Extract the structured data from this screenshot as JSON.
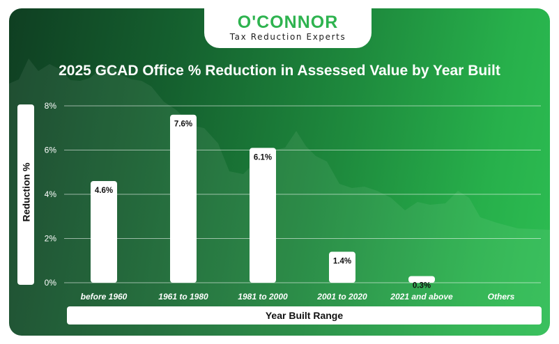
{
  "brand": {
    "name": "O'CONNOR",
    "tagline": "Tax Reduction Experts"
  },
  "colors": {
    "bar": "#ffffff",
    "text": "#ffffff",
    "brand": "#2eb34f"
  },
  "chart_data": {
    "type": "bar",
    "title": "2025 GCAD Office % Reduction in Assessed Value by Year Built",
    "xlabel": "Year Built Range",
    "ylabel": "Reduction %",
    "categories": [
      "before 1960",
      "1961 to 1980",
      "1981 to 2000",
      "2001 to 2020",
      "2021 and above",
      "Others"
    ],
    "values": [
      4.6,
      7.6,
      6.1,
      1.4,
      0.3,
      null
    ],
    "data_labels": [
      "4.6%",
      "7.6%",
      "6.1%",
      "1.4%",
      "0.3%",
      ""
    ],
    "ylim": [
      0,
      8
    ],
    "yticks": [
      0,
      2,
      4,
      6,
      8
    ],
    "ytick_labels": [
      "0%",
      "2%",
      "4%",
      "6%",
      "8%"
    ],
    "grid": true
  }
}
